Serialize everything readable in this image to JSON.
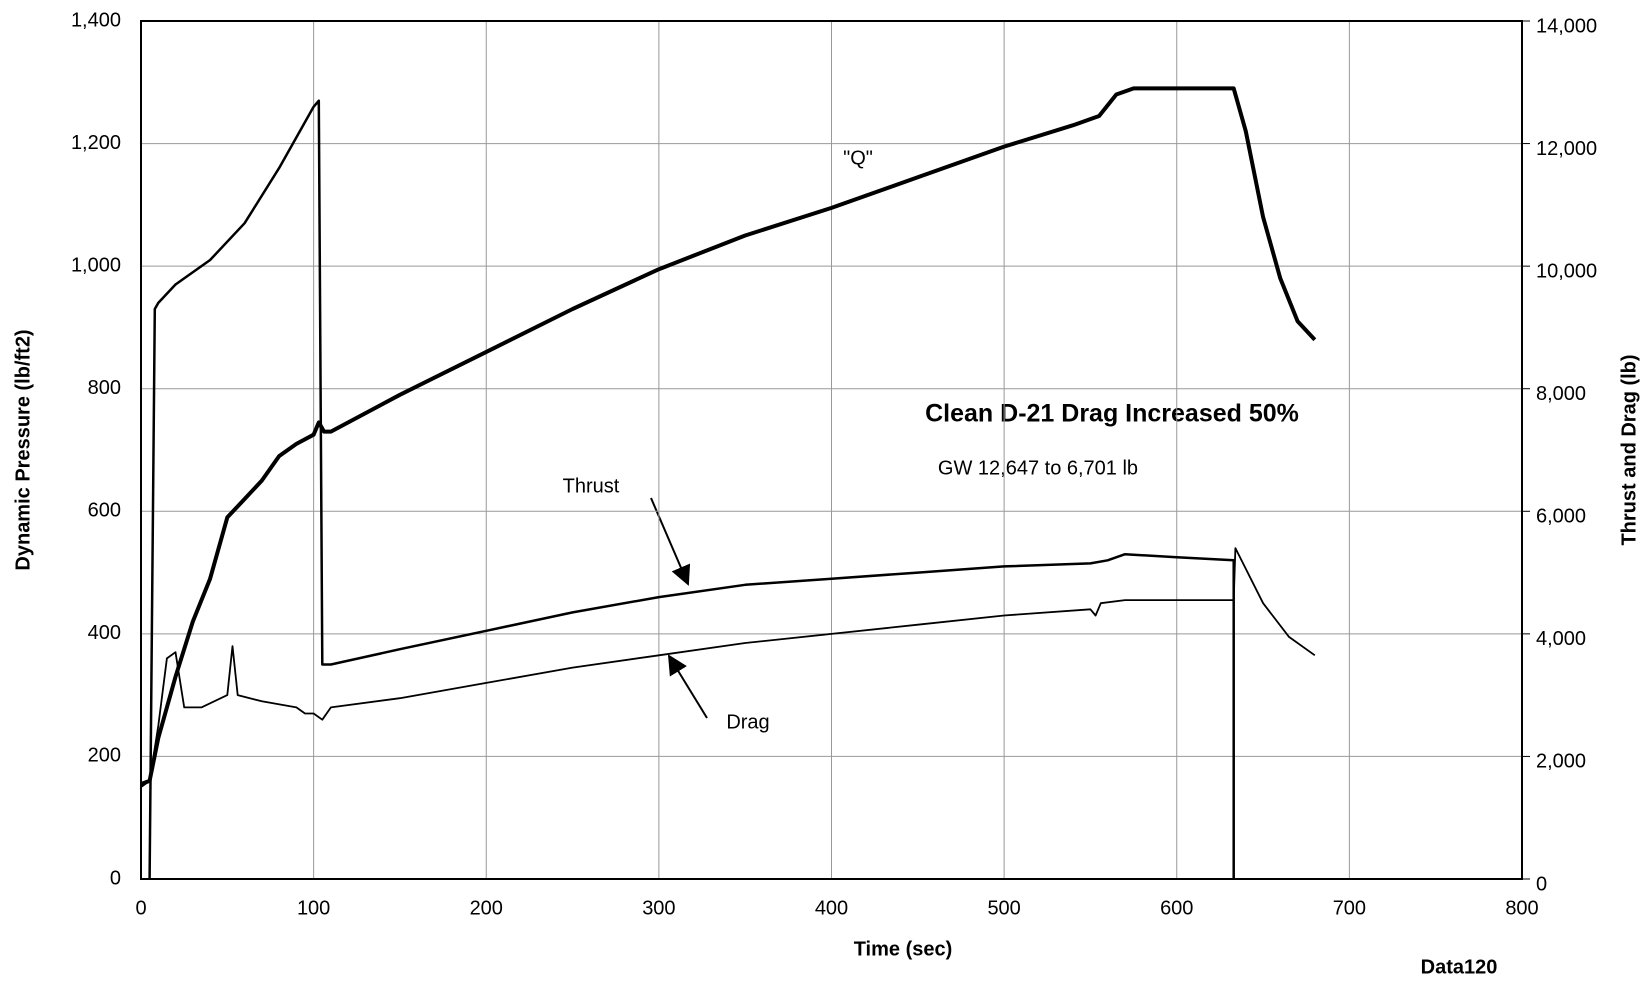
{
  "chart_data": {
    "type": "line",
    "x_label": "Time (sec)",
    "y_label": "Dynamic Pressure (lb/ft2)",
    "y2_label": "Thrust and Drag (lb)",
    "annotations": [
      "\"Q\"",
      "Clean D-21 Drag Increased 50%",
      "GW 12,647 to 6,701 lb",
      "Thrust",
      "Drag",
      "Data120"
    ],
    "xlim": [
      0,
      800
    ],
    "xticks": [
      0,
      100,
      200,
      300,
      400,
      500,
      600,
      700,
      800
    ],
    "ylim": [
      0,
      1400
    ],
    "yticks": [
      0,
      200,
      400,
      600,
      800,
      {
        "value": 1000,
        "label": "1,000"
      },
      {
        "value": 1200,
        "label": "1,200"
      },
      {
        "value": 1400,
        "label": "1,400"
      }
    ],
    "y2lim": [
      0,
      14000
    ],
    "y2ticks": [
      0,
      {
        "value": 2000,
        "label": "2,000"
      },
      {
        "value": 4000,
        "label": "4,000"
      },
      {
        "value": 6000,
        "label": "6,000"
      },
      {
        "value": 8000,
        "label": "8,000"
      },
      {
        "value": 10000,
        "label": "10,000"
      },
      {
        "value": 12000,
        "label": "12,000"
      },
      {
        "value": 14000,
        "label": "14,000"
      }
    ],
    "grid": true,
    "series": [
      {
        "name": "Q",
        "color": "#000000",
        "width": 4,
        "x": [
          0,
          5,
          10,
          20,
          30,
          40,
          50,
          60,
          70,
          80,
          90,
          100,
          103,
          106,
          110,
          150,
          200,
          250,
          300,
          350,
          400,
          450,
          500,
          540,
          555,
          565,
          575,
          600,
          633,
          640,
          650,
          660,
          670,
          680
        ],
        "values": [
          155,
          160,
          230,
          330,
          420,
          490,
          590,
          620,
          650,
          690,
          710,
          725,
          745,
          730,
          730,
          790,
          860,
          930,
          995,
          1050,
          1095,
          1145,
          1195,
          1230,
          1245,
          1280,
          1290,
          1290,
          1290,
          1220,
          1080,
          980,
          910,
          880
        ]
      },
      {
        "name": "Thrust",
        "color": "#000000",
        "width": 2.5,
        "axis": "y2",
        "x": [
          5,
          8,
          10,
          20,
          40,
          60,
          80,
          100,
          103,
          105,
          110,
          150,
          200,
          250,
          300,
          350,
          400,
          450,
          500,
          550,
          560,
          570,
          600,
          633,
          633
        ],
        "values": [
          0,
          9300,
          9400,
          9700,
          10100,
          10700,
          11600,
          12600,
          12700,
          3500,
          3500,
          3750,
          4050,
          4350,
          4600,
          4800,
          4900,
          5000,
          5100,
          5150,
          5200,
          5300,
          5250,
          5200,
          0
        ]
      },
      {
        "name": "Drag",
        "color": "#000000",
        "width": 1.8,
        "axis": "y2",
        "x": [
          0,
          5,
          10,
          15,
          20,
          25,
          35,
          50,
          53,
          56,
          70,
          90,
          95,
          100,
          105,
          110,
          150,
          200,
          250,
          300,
          350,
          400,
          450,
          500,
          550,
          553,
          556,
          570,
          600,
          633,
          634,
          650,
          665,
          680
        ],
        "values": [
          1500,
          1600,
          2500,
          3600,
          3700,
          2800,
          2800,
          3000,
          3800,
          3000,
          2900,
          2800,
          2700,
          2700,
          2600,
          2800,
          2950,
          3200,
          3450,
          3650,
          3850,
          4000,
          4150,
          4300,
          4400,
          4300,
          4500,
          4550,
          4550,
          4550,
          5400,
          4500,
          3950,
          3650
        ]
      }
    ]
  }
}
